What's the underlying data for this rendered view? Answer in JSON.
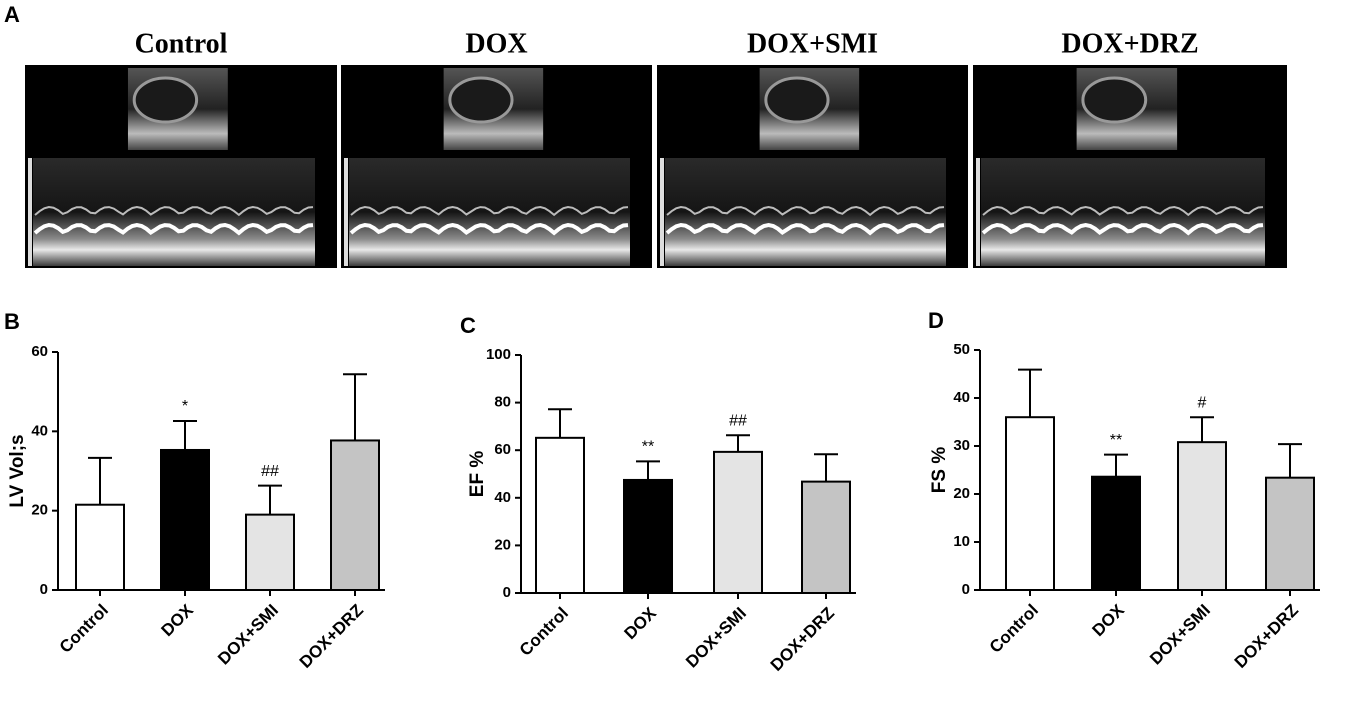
{
  "panels": {
    "image_panel": "A",
    "image_titles": [
      "Control",
      "DOX",
      "DOX+SMI",
      "DOX+DRZ"
    ]
  },
  "chart_data": [
    {
      "type": "bar",
      "panel": "B",
      "y_label": "LV Vol;s",
      "categories": [
        "Control",
        "DOX",
        "DOX+SMI",
        "DOX+DRZ"
      ],
      "values": [
        21.5,
        35.3,
        19.0,
        37.7
      ],
      "errors": [
        11.8,
        7.3,
        7.3,
        16.7
      ],
      "annotations": [
        null,
        "*",
        "##",
        null
      ],
      "colors": [
        "#ffffff",
        "#000000",
        "#e4e4e4",
        "#c4c4c4"
      ],
      "ylim": [
        0,
        60
      ],
      "yticks": [
        0,
        20,
        40,
        60
      ]
    },
    {
      "type": "bar",
      "panel": "C",
      "y_label": "EF %",
      "categories": [
        "Control",
        "DOX",
        "DOX+SMI",
        "DOX+DRZ"
      ],
      "values": [
        65.2,
        47.5,
        59.3,
        46.8
      ],
      "errors": [
        12.0,
        7.8,
        7.0,
        11.5
      ],
      "annotations": [
        null,
        "**",
        "##",
        null
      ],
      "colors": [
        "#ffffff",
        "#000000",
        "#e4e4e4",
        "#c4c4c4"
      ],
      "ylim": [
        0,
        100
      ],
      "yticks": [
        0,
        20,
        40,
        60,
        80,
        100
      ]
    },
    {
      "type": "bar",
      "panel": "D",
      "y_label": "FS %",
      "categories": [
        "Control",
        "DOX",
        "DOX+SMI",
        "DOX+DRZ"
      ],
      "values": [
        36.0,
        23.6,
        30.8,
        23.4
      ],
      "errors": [
        9.9,
        4.6,
        5.2,
        7.0
      ],
      "annotations": [
        null,
        "**",
        "#",
        null
      ],
      "colors": [
        "#ffffff",
        "#000000",
        "#e4e4e4",
        "#c4c4c4"
      ],
      "ylim": [
        0,
        50
      ],
      "yticks": [
        0,
        10,
        20,
        30,
        40,
        50
      ]
    }
  ]
}
